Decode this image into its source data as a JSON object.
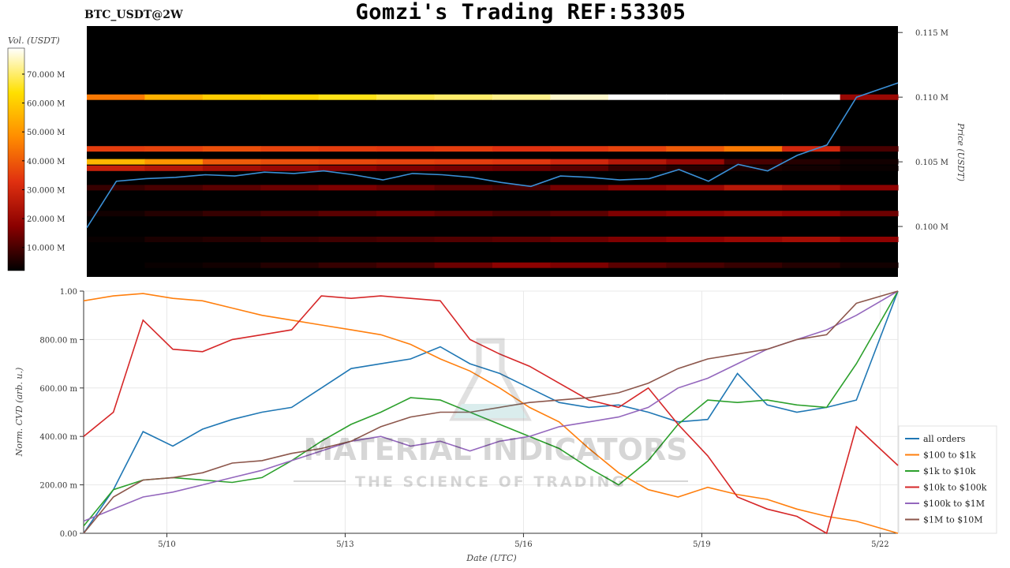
{
  "header": {
    "title": "Gomzi's Trading REF:53305",
    "pair": "BTC_USDT@2W"
  },
  "watermark": {
    "line1": "MATERIAL INDICATORS",
    "line2": "THE SCIENCE OF TRADING"
  },
  "chart_data": [
    {
      "type": "heatmap",
      "title": "BTC_USDT@2W",
      "colorbar": {
        "label": "Vol. (USDT)",
        "ticks": [
          "70.000 M",
          "60.000 M",
          "50.000 M",
          "40.000 M",
          "30.000 M",
          "20.000 M",
          "10.000 M"
        ],
        "tick_values": [
          70,
          60,
          50,
          40,
          30,
          20,
          10
        ],
        "range": [
          2,
          79
        ],
        "colormap": [
          "#000000",
          "#8b0000",
          "#e03010",
          "#ff8c00",
          "#ffe000",
          "#ffffff"
        ]
      },
      "ylabel": "Price (USDT)",
      "y_ticks": [
        "0.115 M",
        "0.110 M",
        "0.105 M",
        "0.100 M"
      ],
      "y_tick_values": [
        0.115,
        0.11,
        0.105,
        0.1
      ],
      "ylim": [
        0.0961,
        0.1155
      ],
      "xlim": [
        0,
        13.7
      ],
      "x_days": [
        0,
        0.5,
        1,
        1.5,
        2,
        2.5,
        3,
        3.5,
        4,
        4.5,
        5,
        5.5,
        6,
        6.5,
        7,
        7.5,
        8,
        8.5,
        9,
        9.5,
        10,
        10.5,
        11,
        11.5,
        12,
        12.5,
        13,
        13.7
      ],
      "price_line": [
        0.0999,
        0.1035,
        0.1037,
        0.1038,
        0.104,
        0.1039,
        0.1042,
        0.1041,
        0.1043,
        0.104,
        0.1036,
        0.1041,
        0.104,
        0.1038,
        0.1034,
        0.1031,
        0.1039,
        0.1038,
        0.1036,
        0.1037,
        0.1044,
        0.1035,
        0.1048,
        0.1043,
        0.1055,
        0.1063,
        0.11,
        0.1111
      ],
      "levels": [
        {
          "price": 0.11,
          "vols": [
            45,
            55,
            60,
            62,
            65,
            68,
            70,
            72,
            76,
            79,
            79,
            79,
            79,
            20
          ]
        },
        {
          "price": 0.106,
          "vols": [
            35,
            36,
            38,
            36,
            35,
            34,
            35,
            33,
            34,
            36,
            40,
            45,
            30,
            10
          ]
        },
        {
          "price": 0.105,
          "vols": [
            56,
            50,
            40,
            38,
            37,
            36,
            35,
            34,
            30,
            25,
            20,
            10,
            6,
            4
          ]
        },
        {
          "price": 0.1045,
          "vols": [
            28,
            25,
            22,
            20,
            18,
            16,
            15,
            14,
            12,
            8,
            6,
            5,
            4,
            3
          ]
        },
        {
          "price": 0.103,
          "vols": [
            8,
            10,
            12,
            14,
            16,
            14,
            12,
            10,
            15,
            18,
            20,
            25,
            22,
            18
          ]
        },
        {
          "price": 0.101,
          "vols": [
            4,
            6,
            8,
            10,
            12,
            14,
            12,
            10,
            12,
            16,
            18,
            20,
            18,
            14
          ]
        },
        {
          "price": 0.099,
          "vols": [
            3,
            5,
            6,
            8,
            9,
            10,
            11,
            12,
            14,
            16,
            18,
            20,
            22,
            18
          ]
        },
        {
          "price": 0.097,
          "vols": [
            2,
            3,
            4,
            6,
            8,
            10,
            14,
            18,
            16,
            12,
            10,
            8,
            6,
            4
          ]
        }
      ]
    },
    {
      "type": "line",
      "xlabel": "Date (UTC)",
      "ylabel": "Norm. CVD (arb. u.)",
      "x_ticks": [
        "5/10",
        "5/13",
        "5/16",
        "5/19",
        "5/22"
      ],
      "x_tick_days": [
        1.4,
        4.4,
        7.4,
        10.4,
        13.4
      ],
      "y_ticks": [
        "1.00",
        "800.00 m",
        "600.00 m",
        "400.00 m",
        "200.00 m",
        "0.00"
      ],
      "y_tick_values": [
        1.0,
        0.8,
        0.6,
        0.4,
        0.2,
        0.0
      ],
      "xlim": [
        0,
        13.7
      ],
      "ylim": [
        0,
        1.0
      ],
      "grid": true,
      "legend_position": "right",
      "x": [
        0,
        0.5,
        1,
        1.5,
        2,
        2.5,
        3,
        3.5,
        4,
        4.5,
        5,
        5.5,
        6,
        6.5,
        7,
        7.5,
        8,
        8.5,
        9,
        9.5,
        10,
        10.5,
        11,
        11.5,
        12,
        12.5,
        13,
        13.7
      ],
      "series": [
        {
          "name": "all orders",
          "color": "#1f77b4",
          "values": [
            0.0,
            0.18,
            0.42,
            0.36,
            0.43,
            0.47,
            0.5,
            0.52,
            0.6,
            0.68,
            0.7,
            0.72,
            0.77,
            0.7,
            0.66,
            0.6,
            0.54,
            0.52,
            0.53,
            0.5,
            0.46,
            0.47,
            0.66,
            0.53,
            0.5,
            0.52,
            0.55,
            1.0
          ]
        },
        {
          "name": "$100 to $1k",
          "color": "#ff7f0e",
          "values": [
            0.96,
            0.98,
            0.99,
            0.97,
            0.96,
            0.93,
            0.9,
            0.88,
            0.86,
            0.84,
            0.82,
            0.78,
            0.72,
            0.67,
            0.6,
            0.52,
            0.46,
            0.35,
            0.25,
            0.18,
            0.15,
            0.19,
            0.16,
            0.14,
            0.1,
            0.07,
            0.05,
            0.0
          ]
        },
        {
          "name": "$1k to $10k",
          "color": "#2ca02c",
          "values": [
            0.03,
            0.18,
            0.22,
            0.23,
            0.22,
            0.21,
            0.23,
            0.3,
            0.38,
            0.45,
            0.5,
            0.56,
            0.55,
            0.5,
            0.45,
            0.4,
            0.35,
            0.27,
            0.2,
            0.3,
            0.45,
            0.55,
            0.54,
            0.55,
            0.53,
            0.52,
            0.7,
            1.0
          ]
        },
        {
          "name": "$10k to $100k",
          "color": "#d62728",
          "values": [
            0.4,
            0.5,
            0.88,
            0.76,
            0.75,
            0.8,
            0.82,
            0.84,
            0.98,
            0.97,
            0.98,
            0.97,
            0.96,
            0.8,
            0.74,
            0.69,
            0.62,
            0.55,
            0.52,
            0.6,
            0.45,
            0.32,
            0.15,
            0.1,
            0.07,
            0.0,
            0.44,
            0.28
          ]
        },
        {
          "name": "$100k to $1M",
          "color": "#9467bd",
          "values": [
            0.05,
            0.1,
            0.15,
            0.17,
            0.2,
            0.23,
            0.26,
            0.3,
            0.34,
            0.38,
            0.4,
            0.36,
            0.38,
            0.34,
            0.38,
            0.4,
            0.44,
            0.46,
            0.48,
            0.52,
            0.6,
            0.64,
            0.7,
            0.76,
            0.8,
            0.84,
            0.9,
            1.0
          ]
        },
        {
          "name": "$1M to $10M",
          "color": "#8c564b",
          "values": [
            0.0,
            0.15,
            0.22,
            0.23,
            0.25,
            0.29,
            0.3,
            0.33,
            0.35,
            0.38,
            0.44,
            0.48,
            0.5,
            0.5,
            0.52,
            0.54,
            0.55,
            0.56,
            0.58,
            0.62,
            0.68,
            0.72,
            0.74,
            0.76,
            0.8,
            0.82,
            0.95,
            1.0
          ]
        }
      ]
    }
  ]
}
